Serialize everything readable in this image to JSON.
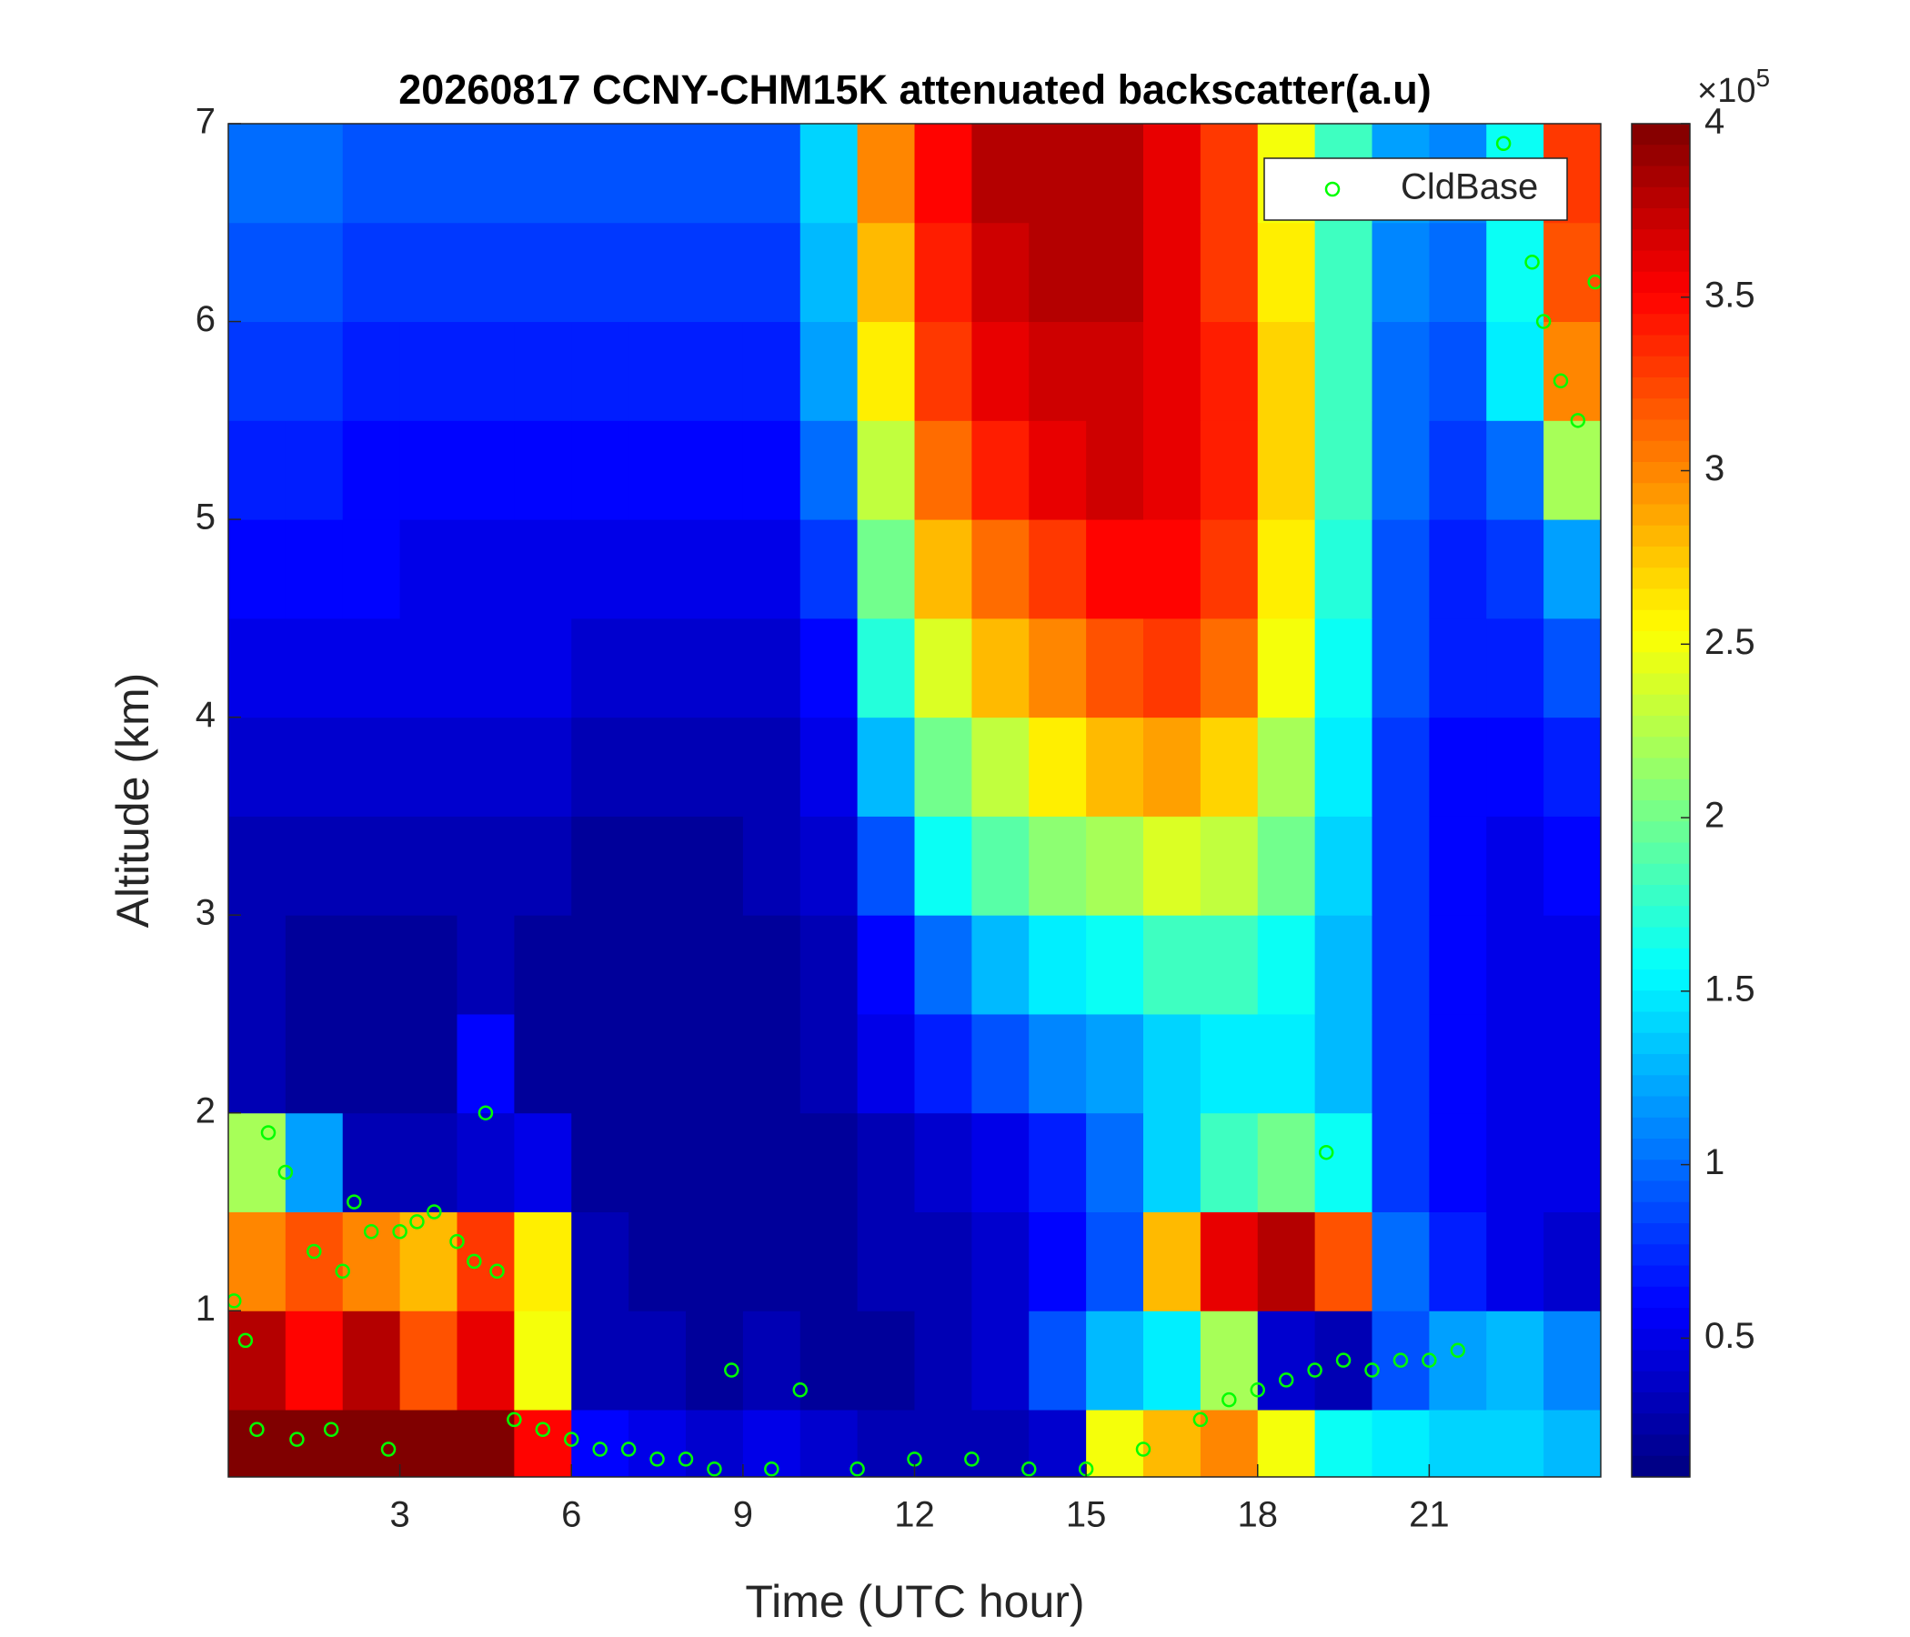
{
  "chart_data": {
    "type": "heatmap",
    "title": "20260817 CCNY-CHM15K attenuated backscatter(a.u)",
    "xlabel": "Time (UTC hour)",
    "ylabel": "Altitude (km)",
    "xlim": [
      0,
      24
    ],
    "xticks": [
      3,
      6,
      9,
      12,
      15,
      18,
      21
    ],
    "ylim": [
      0.16,
      7
    ],
    "yticks": [
      1,
      2,
      3,
      4,
      5,
      6,
      7
    ],
    "colormap": "jet",
    "clim": [
      0.1,
      4
    ],
    "colorbar_ticks": [
      0.5,
      1,
      1.5,
      2,
      2.5,
      3,
      3.5,
      4
    ],
    "colorbar_multiplier": {
      "base": "×10",
      "exponent": "5"
    },
    "x": [
      0.5,
      1.5,
      2.5,
      3.5,
      4.5,
      5.5,
      6.5,
      7.5,
      8.5,
      9.5,
      10.5,
      11.5,
      12.5,
      13.5,
      14.5,
      15.5,
      16.5,
      17.5,
      18.5,
      19.5,
      20.5,
      21.5,
      22.5,
      23.5
    ],
    "y": [
      0.25,
      0.75,
      1.25,
      1.75,
      2.25,
      2.75,
      3.25,
      3.75,
      4.25,
      4.75,
      5.25,
      5.75,
      6.25,
      6.75
    ],
    "z": [
      [
        4,
        4,
        4,
        4,
        4,
        3.5,
        0.6,
        0.5,
        0.4,
        0.5,
        0.4,
        0.3,
        0.3,
        0.3,
        0.4,
        2.5,
        2.8,
        3,
        2.5,
        1.6,
        1.5,
        1.4,
        1.4,
        1.3
      ],
      [
        3.8,
        3.5,
        3.8,
        3.2,
        3.6,
        2.5,
        0.3,
        0.3,
        0.2,
        0.3,
        0.2,
        0.2,
        0.3,
        0.4,
        0.9,
        1.3,
        1.5,
        2.2,
        0.4,
        0.3,
        0.9,
        1.2,
        1.3,
        1.1
      ],
      [
        3,
        3.2,
        3,
        2.8,
        3.3,
        2.6,
        0.3,
        0.2,
        0.2,
        0.2,
        0.2,
        0.3,
        0.3,
        0.4,
        0.6,
        0.9,
        2.8,
        3.6,
        3.8,
        3.2,
        1,
        0.7,
        0.5,
        0.4
      ],
      [
        2.2,
        1.2,
        0.3,
        0.3,
        0.4,
        0.5,
        0.2,
        0.2,
        0.2,
        0.2,
        0.2,
        0.3,
        0.4,
        0.5,
        0.7,
        1,
        1.4,
        1.8,
        2,
        1.6,
        0.8,
        0.6,
        0.5,
        0.5
      ],
      [
        0.3,
        0.2,
        0.2,
        0.2,
        0.6,
        0.2,
        0.2,
        0.2,
        0.2,
        0.2,
        0.3,
        0.5,
        0.7,
        0.9,
        1.1,
        1.2,
        1.4,
        1.5,
        1.5,
        1.3,
        0.8,
        0.6,
        0.5,
        0.5
      ],
      [
        0.3,
        0.2,
        0.2,
        0.2,
        0.3,
        0.2,
        0.2,
        0.2,
        0.2,
        0.2,
        0.3,
        0.6,
        1,
        1.3,
        1.5,
        1.6,
        1.8,
        1.8,
        1.6,
        1.3,
        0.8,
        0.6,
        0.5,
        0.5
      ],
      [
        0.3,
        0.3,
        0.3,
        0.3,
        0.3,
        0.3,
        0.2,
        0.2,
        0.2,
        0.3,
        0.4,
        0.9,
        1.6,
        1.9,
        2.1,
        2.2,
        2.4,
        2.3,
        2,
        1.4,
        0.8,
        0.6,
        0.5,
        0.6
      ],
      [
        0.4,
        0.4,
        0.4,
        0.4,
        0.4,
        0.4,
        0.3,
        0.3,
        0.3,
        0.3,
        0.5,
        1.3,
        2,
        2.3,
        2.6,
        2.8,
        2.9,
        2.7,
        2.2,
        1.5,
        0.8,
        0.6,
        0.6,
        0.7
      ],
      [
        0.5,
        0.5,
        0.5,
        0.5,
        0.5,
        0.5,
        0.4,
        0.4,
        0.4,
        0.4,
        0.6,
        1.7,
        2.4,
        2.8,
        3,
        3.2,
        3.3,
        3.1,
        2.5,
        1.6,
        0.9,
        0.7,
        0.7,
        0.9
      ],
      [
        0.6,
        0.6,
        0.6,
        0.5,
        0.5,
        0.5,
        0.5,
        0.5,
        0.5,
        0.5,
        0.8,
        2,
        2.8,
        3.1,
        3.3,
        3.5,
        3.5,
        3.3,
        2.6,
        1.7,
        0.9,
        0.7,
        0.8,
        1.2
      ],
      [
        0.7,
        0.7,
        0.6,
        0.6,
        0.6,
        0.6,
        0.6,
        0.6,
        0.6,
        0.6,
        1,
        2.3,
        3.1,
        3.4,
        3.6,
        3.7,
        3.6,
        3.4,
        2.7,
        1.8,
        1,
        0.8,
        1,
        2.2
      ],
      [
        0.8,
        0.8,
        0.7,
        0.7,
        0.7,
        0.7,
        0.7,
        0.7,
        0.7,
        0.7,
        1.2,
        2.6,
        3.3,
        3.6,
        3.7,
        3.7,
        3.6,
        3.4,
        2.7,
        1.8,
        1,
        0.9,
        1.5,
        3
      ],
      [
        0.9,
        0.9,
        0.8,
        0.8,
        0.8,
        0.8,
        0.8,
        0.8,
        0.8,
        0.8,
        1.3,
        2.8,
        3.4,
        3.7,
        3.8,
        3.8,
        3.6,
        3.3,
        2.6,
        1.8,
        1.1,
        1,
        1.6,
        3.2
      ],
      [
        1,
        1,
        0.9,
        0.9,
        0.9,
        0.9,
        0.9,
        0.9,
        0.9,
        0.9,
        1.4,
        3,
        3.5,
        3.8,
        3.8,
        3.8,
        3.6,
        3.3,
        2.5,
        1.8,
        1.2,
        1.1,
        1.6,
        3.3
      ]
    ],
    "legend": "upper right",
    "series": [
      {
        "name": "CldBase",
        "type": "scatter",
        "color": "#00ff00",
        "x": [
          0.1,
          0.3,
          0.5,
          0.7,
          1.0,
          1.2,
          1.5,
          1.8,
          2.0,
          2.2,
          2.5,
          2.8,
          3.0,
          3.3,
          3.6,
          4.0,
          4.3,
          4.5,
          4.7,
          5.0,
          5.5,
          6,
          6.5,
          7,
          7.5,
          8,
          8.5,
          8.8,
          9.5,
          10,
          11,
          12,
          13,
          14,
          15,
          16,
          17,
          17.5,
          18,
          18.5,
          19,
          19.2,
          19.5,
          20,
          20.5,
          21,
          21.5,
          22.3,
          22.8,
          23,
          23.3,
          23.6,
          23.9
        ],
        "y": [
          1.05,
          0.85,
          0.4,
          1.9,
          1.7,
          0.35,
          1.3,
          0.4,
          1.2,
          1.55,
          1.4,
          0.3,
          1.4,
          1.45,
          1.5,
          1.35,
          1.25,
          2.0,
          1.2,
          0.45,
          0.4,
          0.35,
          0.3,
          0.3,
          0.25,
          0.25,
          0.2,
          0.7,
          0.2,
          0.6,
          0.2,
          0.25,
          0.25,
          0.2,
          0.2,
          0.3,
          0.45,
          0.55,
          0.6,
          0.65,
          0.7,
          1.8,
          0.75,
          0.7,
          0.75,
          0.75,
          0.8,
          6.9,
          6.3,
          6.0,
          5.7,
          5.5,
          6.2
        ]
      }
    ]
  }
}
